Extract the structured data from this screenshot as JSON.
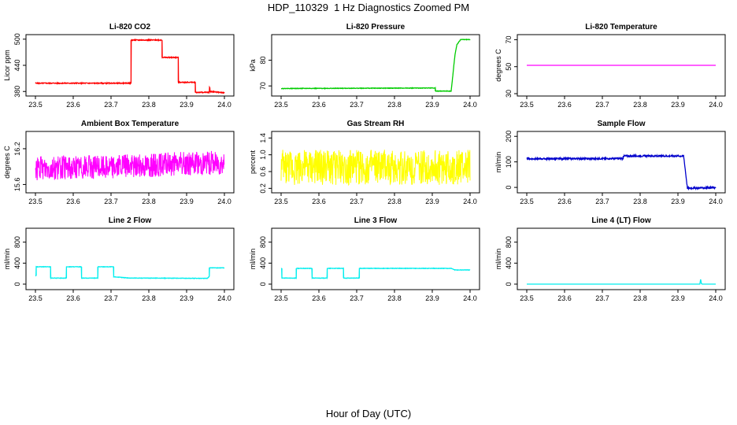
{
  "header": {
    "title": "HDP_110329  1 Hz Diagnostics Zoomed PM"
  },
  "footer": {
    "xlabel": "Hour of Day (UTC)"
  },
  "chart_data": [
    {
      "type": "line",
      "title": "Li-820 CO2",
      "xlabel": "",
      "ylabel": "Licor ppm",
      "color": "#ff0000",
      "xticks": [
        "23.5",
        "23.6",
        "23.7",
        "23.8",
        "23.9",
        "24.0"
      ],
      "yticks": [
        {
          "v": 380,
          "label": "380"
        },
        {
          "v": 440,
          "label": "440"
        },
        {
          "v": 500,
          "label": "500"
        }
      ],
      "xlim": [
        23.5,
        24.0
      ],
      "ylim": [
        375,
        505
      ],
      "noise": 1,
      "series": [
        {
          "x": [
            23.5,
            23.753,
            23.753,
            23.835,
            23.835,
            23.878,
            23.878,
            23.923,
            23.923,
            23.96,
            23.961,
            23.962,
            24.0
          ],
          "y": [
            399,
            399,
            498,
            498,
            458,
            458,
            401,
            401,
            378,
            378,
            395,
            380,
            377
          ]
        }
      ]
    },
    {
      "type": "line",
      "title": "Li-820 Pressure",
      "xlabel": "",
      "ylabel": "kPa",
      "color": "#00cc00",
      "xticks": [
        "23.5",
        "23.6",
        "23.7",
        "23.8",
        "23.9",
        "24.0"
      ],
      "yticks": [
        {
          "v": 70,
          "label": "70"
        },
        {
          "v": 80,
          "label": "80"
        }
      ],
      "xlim": [
        23.5,
        24.0
      ],
      "ylim": [
        67,
        89
      ],
      "noise": 0.1,
      "series": [
        {
          "x": [
            23.5,
            23.908,
            23.908,
            23.95,
            23.955,
            23.96,
            23.965,
            23.975,
            24.0
          ],
          "y": [
            69,
            69.2,
            68,
            68,
            75,
            82,
            86,
            88,
            88
          ]
        }
      ]
    },
    {
      "type": "line",
      "title": "Li-820 Temperature",
      "xlabel": "",
      "ylabel": "degrees C",
      "color": "#ff00ff",
      "xticks": [
        "23.5",
        "23.6",
        "23.7",
        "23.8",
        "23.9",
        "24.0"
      ],
      "yticks": [
        {
          "v": 30,
          "label": "30"
        },
        {
          "v": 50,
          "label": "50"
        },
        {
          "v": 70,
          "label": "70"
        }
      ],
      "xlim": [
        23.5,
        24.0
      ],
      "ylim": [
        30,
        72
      ],
      "noise": 0,
      "series": [
        {
          "x": [
            23.5,
            24.0
          ],
          "y": [
            51,
            51
          ]
        }
      ]
    },
    {
      "type": "line",
      "title": "Ambient Box Temperature",
      "xlabel": "",
      "ylabel": "degrees C",
      "color": "#ff00ff",
      "xticks": [
        "23.5",
        "23.6",
        "23.7",
        "23.8",
        "23.9",
        "24.0"
      ],
      "yticks": [
        {
          "v": 15.6,
          "label": "15.6"
        },
        {
          "v": 16.2,
          "label": "16.2"
        }
      ],
      "xlim": [
        23.5,
        24.0
      ],
      "ylim": [
        15.5,
        16.45
      ],
      "noise": 0.2,
      "series": [
        {
          "x": [
            23.5,
            23.7,
            23.9,
            24.0
          ],
          "y": [
            15.87,
            15.9,
            15.95,
            15.97
          ]
        }
      ]
    },
    {
      "type": "line",
      "title": "Gas Stream RH",
      "xlabel": "",
      "ylabel": "percent",
      "color": "#ffff00",
      "xticks": [
        "23.5",
        "23.6",
        "23.7",
        "23.8",
        "23.9",
        "24.0"
      ],
      "yticks": [
        {
          "v": 0.2,
          "label": "0.2"
        },
        {
          "v": 0.6,
          "label": "0.6"
        },
        {
          "v": 1.0,
          "label": "1.0"
        },
        {
          "v": 1.4,
          "label": "1.4"
        }
      ],
      "xlim": [
        23.5,
        24.0
      ],
      "ylim": [
        0.15,
        1.5
      ],
      "noise": 0.42,
      "series": [
        {
          "x": [
            23.5,
            24.0
          ],
          "y": [
            0.7,
            0.7
          ]
        }
      ]
    },
    {
      "type": "line",
      "title": "Sample Flow",
      "xlabel": "",
      "ylabel": "ml/min",
      "color": "#0000cc",
      "xticks": [
        "23.5",
        "23.6",
        "23.7",
        "23.8",
        "23.9",
        "24.0"
      ],
      "yticks": [
        {
          "v": 0,
          "label": "0"
        },
        {
          "v": 100,
          "label": "100"
        },
        {
          "v": 200,
          "label": "200"
        }
      ],
      "xlim": [
        23.5,
        24.0
      ],
      "ylim": [
        -12,
        210
      ],
      "noise": 3,
      "series": [
        {
          "x": [
            23.5,
            23.74,
            23.755,
            23.755,
            23.915,
            23.915,
            23.925,
            24.0
          ],
          "y": [
            112,
            113,
            113,
            123,
            123,
            125,
            -3,
            -1
          ]
        }
      ]
    },
    {
      "type": "line",
      "title": "Line 2 Flow",
      "xlabel": "",
      "ylabel": "ml/min",
      "color": "#00eeee",
      "xticks": [
        "23.5",
        "23.6",
        "23.7",
        "23.8",
        "23.9",
        "24.0"
      ],
      "yticks": [
        {
          "v": 0,
          "label": "0"
        },
        {
          "v": 400,
          "label": "400"
        },
        {
          "v": 800,
          "label": "800"
        }
      ],
      "xlim": [
        23.5,
        24.0
      ],
      "ylim": [
        -60,
        1020
      ],
      "noise": 4,
      "series": [
        {
          "x": [
            23.5,
            23.502,
            23.502,
            23.54,
            23.54,
            23.582,
            23.582,
            23.622,
            23.622,
            23.665,
            23.665,
            23.707,
            23.707,
            23.75,
            23.8,
            23.955,
            23.96,
            23.96,
            24.0
          ],
          "y": [
            160,
            160,
            330,
            330,
            115,
            115,
            330,
            330,
            115,
            115,
            330,
            330,
            140,
            115,
            115,
            110,
            150,
            310,
            310
          ]
        }
      ]
    },
    {
      "type": "line",
      "title": "Line 3 Flow",
      "xlabel": "",
      "ylabel": "ml/min",
      "color": "#00eeee",
      "xticks": [
        "23.5",
        "23.6",
        "23.7",
        "23.8",
        "23.9",
        "24.0"
      ],
      "yticks": [
        {
          "v": 0,
          "label": "0"
        },
        {
          "v": 400,
          "label": "400"
        },
        {
          "v": 800,
          "label": "800"
        }
      ],
      "xlim": [
        23.5,
        24.0
      ],
      "ylim": [
        -60,
        1020
      ],
      "noise": 4,
      "series": [
        {
          "x": [
            23.5,
            23.502,
            23.502,
            23.54,
            23.54,
            23.582,
            23.582,
            23.622,
            23.622,
            23.665,
            23.665,
            23.707,
            23.707,
            23.95,
            23.96,
            24.0
          ],
          "y": [
            300,
            300,
            115,
            115,
            300,
            300,
            115,
            115,
            300,
            300,
            115,
            115,
            300,
            300,
            270,
            270
          ]
        }
      ]
    },
    {
      "type": "line",
      "title": "Line 4 (LT) Flow",
      "xlabel": "",
      "ylabel": "ml/min",
      "color": "#00eeee",
      "xticks": [
        "23.5",
        "23.6",
        "23.7",
        "23.8",
        "23.9",
        "24.0"
      ],
      "yticks": [
        {
          "v": 0,
          "label": "0"
        },
        {
          "v": 400,
          "label": "400"
        },
        {
          "v": 800,
          "label": "800"
        }
      ],
      "xlim": [
        23.5,
        24.0
      ],
      "ylim": [
        -60,
        1020
      ],
      "noise": 0,
      "series": [
        {
          "x": [
            23.5,
            23.958,
            23.96,
            23.962,
            23.964,
            24.0
          ],
          "y": [
            0,
            0,
            90,
            10,
            0,
            0
          ]
        }
      ]
    }
  ]
}
